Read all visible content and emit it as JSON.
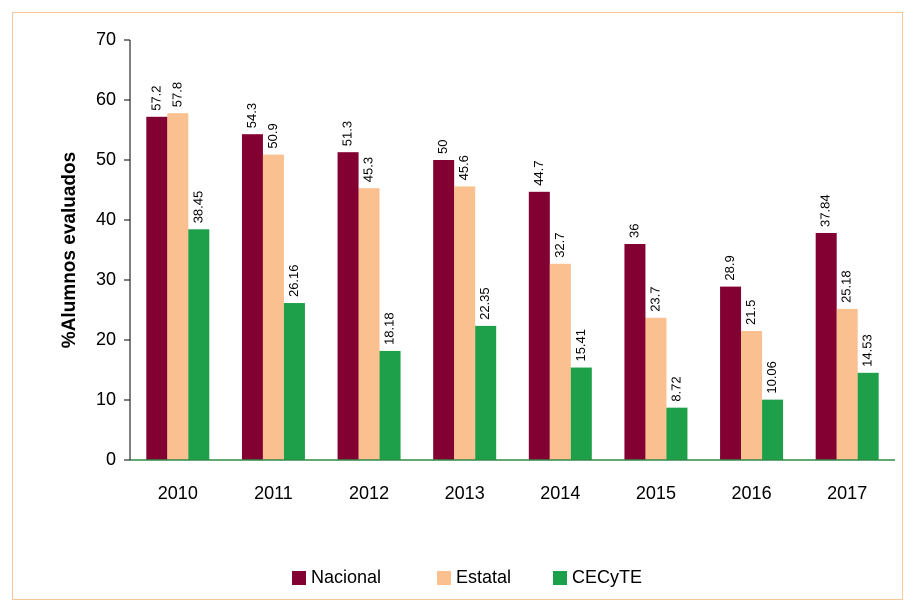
{
  "chart_data": {
    "type": "bar",
    "y_label": "%Alumnos evaluados",
    "categories": [
      "2010",
      "2011",
      "2012",
      "2013",
      "2014",
      "2015",
      "2016",
      "2017"
    ],
    "series": [
      {
        "name": "Nacional",
        "color": "#820032",
        "values": [
          57.2,
          54.3,
          51.3,
          50,
          44.7,
          36,
          28.9,
          37.84
        ]
      },
      {
        "name": "Estatal",
        "color": "#fac08f",
        "values": [
          57.8,
          50.9,
          45.3,
          45.6,
          32.7,
          23.7,
          21.5,
          25.18
        ]
      },
      {
        "name": "CECyTE",
        "color": "#1ea04a",
        "values": [
          38.45,
          26.16,
          18.18,
          22.35,
          15.41,
          8.72,
          10.06,
          14.53
        ]
      }
    ],
    "ylim": [
      0,
      70
    ],
    "yticks": [
      0,
      10,
      20,
      30,
      40,
      50,
      60,
      70
    ],
    "grid": false,
    "legend": "bottom"
  }
}
